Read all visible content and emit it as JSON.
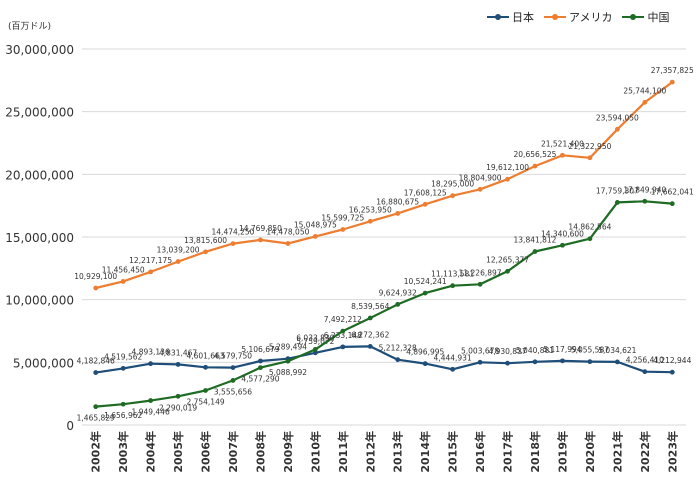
{
  "unit_label": "(百万ドル)",
  "colors": {
    "japan": "#1f4e79",
    "usa": "#ed7d31",
    "china": "#1e6b24",
    "grid": "#d9d9d9",
    "axis_text": "#333333"
  },
  "chart_data": {
    "type": "line",
    "categories": [
      "2002年",
      "2003年",
      "2004年",
      "2005年",
      "2006年",
      "2007年",
      "2008年",
      "2009年",
      "2010年",
      "2011年",
      "2012年",
      "2013年",
      "2014年",
      "2015年",
      "2016年",
      "2017年",
      "2018年",
      "2019年",
      "2020年",
      "2021年",
      "2022年",
      "2023年"
    ],
    "ylim": [
      0,
      30000000
    ],
    "yticks": [
      0,
      5000000,
      10000000,
      15000000,
      20000000,
      25000000,
      30000000
    ],
    "ytick_labels": [
      "0",
      "5,000,000",
      "10,000,000",
      "15,000,000",
      "20,000,000",
      "25,000,000",
      "30,000,000"
    ],
    "grid": true,
    "legend_position": "top-right",
    "series": [
      {
        "name": "日本",
        "color_key": "japan",
        "values": [
          4182846,
          4519562,
          4893136,
          4831467,
          4601663,
          4579750,
          5106679,
          5289494,
          5759072,
          6233148,
          6272362,
          5212328,
          4896995,
          4444931,
          5003678,
          4930837,
          5040881,
          5117994,
          5055587,
          5034621,
          4256410,
          4212944
        ],
        "labels": [
          "4,182,846",
          "4,519,562",
          "4,893,136",
          "4,831,467",
          "4,601,663",
          "4,579,750",
          "5,106,679",
          "5,289,494",
          "5,759,072",
          "6,233,148",
          "6,272,362",
          "5,212,328",
          "4,896,995",
          "4,444,931",
          "5,003,678",
          "4,930,837",
          "5,040,881",
          "5,117,994",
          "5,055,587",
          "5,034,621",
          "4,256,410",
          "4,212,944"
        ]
      },
      {
        "name": "アメリカ",
        "color_key": "usa",
        "values": [
          10929100,
          11456450,
          12217175,
          13039200,
          13815600,
          14474250,
          14769850,
          14478050,
          15048975,
          15599725,
          16253950,
          16880675,
          17608125,
          18295000,
          18804900,
          19612100,
          20656525,
          21521400,
          21322950,
          23594050,
          25744100,
          27357825
        ],
        "labels": [
          "10,929,100",
          "11,456,450",
          "12,217,175",
          "13,039,200",
          "13,815,600",
          "14,474,250",
          "14,769,850",
          "14,478,050",
          "15,048,975",
          "15,599,725",
          "16,253,950",
          "16,880,675",
          "17,608,125",
          "18,295,000",
          "18,804,900",
          "19,612,100",
          "20,656,525",
          "21,521,400",
          "21,322,950",
          "23,594,050",
          "25,744,100",
          "27,357,825"
        ]
      },
      {
        "name": "中国",
        "color_key": "china",
        "values": [
          1465829,
          1656962,
          1949446,
          2290019,
          2754149,
          3555656,
          4577290,
          5088992,
          6033830,
          7492212,
          8539564,
          9624932,
          10524241,
          11113581,
          11226897,
          12265377,
          13841812,
          14340600,
          14862564,
          17759307,
          17849940,
          17662041
        ],
        "labels": [
          "1,465,829",
          "1,656,962",
          "1,949,446",
          "2,290,019",
          "2,754,149",
          "3,555,656",
          "4,577,290",
          "5,088,992",
          "6,033,830",
          "7,492,212",
          "8,539,564",
          "9,624,932",
          "10,524,241",
          "11,113,581",
          "11,226,897",
          "12,265,377",
          "13,841,812",
          "14,340,600",
          "14,862,564",
          "17,759,307",
          "17,849,940",
          "17,662,041"
        ]
      }
    ]
  }
}
